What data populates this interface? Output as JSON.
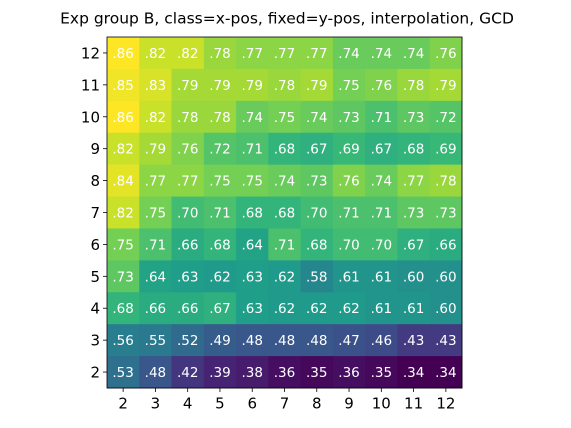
{
  "chart_data": {
    "type": "heatmap",
    "title": "Exp group B, class=x-pos, fixed=y-pos, interpolation, GCD",
    "colormap": "viridis",
    "x": [
      2,
      3,
      4,
      5,
      6,
      7,
      8,
      9,
      10,
      11,
      12
    ],
    "y": [
      12,
      11,
      10,
      9,
      8,
      7,
      6,
      5,
      4,
      3,
      2
    ],
    "values": [
      [
        0.86,
        0.82,
        0.82,
        0.78,
        0.77,
        0.77,
        0.77,
        0.74,
        0.74,
        0.74,
        0.76
      ],
      [
        0.85,
        0.83,
        0.79,
        0.79,
        0.79,
        0.78,
        0.79,
        0.75,
        0.76,
        0.78,
        0.79
      ],
      [
        0.86,
        0.82,
        0.78,
        0.78,
        0.74,
        0.75,
        0.74,
        0.73,
        0.71,
        0.73,
        0.72
      ],
      [
        0.82,
        0.79,
        0.76,
        0.72,
        0.71,
        0.68,
        0.67,
        0.69,
        0.67,
        0.68,
        0.69
      ],
      [
        0.84,
        0.77,
        0.77,
        0.75,
        0.75,
        0.74,
        0.73,
        0.76,
        0.74,
        0.77,
        0.78
      ],
      [
        0.82,
        0.75,
        0.7,
        0.71,
        0.68,
        0.68,
        0.7,
        0.71,
        0.71,
        0.73,
        0.73
      ],
      [
        0.75,
        0.71,
        0.66,
        0.68,
        0.64,
        0.71,
        0.68,
        0.7,
        0.7,
        0.67,
        0.66
      ],
      [
        0.73,
        0.64,
        0.63,
        0.62,
        0.63,
        0.62,
        0.58,
        0.61,
        0.61,
        0.6,
        0.6
      ],
      [
        0.68,
        0.66,
        0.66,
        0.67,
        0.63,
        0.62,
        0.62,
        0.62,
        0.61,
        0.61,
        0.6
      ],
      [
        0.56,
        0.55,
        0.52,
        0.49,
        0.48,
        0.48,
        0.48,
        0.47,
        0.46,
        0.43,
        0.43
      ],
      [
        0.53,
        0.48,
        0.42,
        0.39,
        0.38,
        0.36,
        0.35,
        0.36,
        0.35,
        0.34,
        0.34
      ]
    ],
    "value_labels": [
      [
        ".86",
        ".82",
        ".82",
        ".78",
        ".77",
        ".77",
        ".77",
        ".74",
        ".74",
        ".74",
        ".76"
      ],
      [
        ".85",
        ".83",
        ".79",
        ".79",
        ".79",
        ".78",
        ".79",
        ".75",
        ".76",
        ".78",
        ".79"
      ],
      [
        ".86",
        ".82",
        ".78",
        ".78",
        ".74",
        ".75",
        ".74",
        ".73",
        ".71",
        ".73",
        ".72"
      ],
      [
        ".82",
        ".79",
        ".76",
        ".72",
        ".71",
        ".68",
        ".67",
        ".69",
        ".67",
        ".68",
        ".69"
      ],
      [
        ".84",
        ".77",
        ".77",
        ".75",
        ".75",
        ".74",
        ".73",
        ".76",
        ".74",
        ".77",
        ".78"
      ],
      [
        ".82",
        ".75",
        ".70",
        ".71",
        ".68",
        ".68",
        ".70",
        ".71",
        ".71",
        ".73",
        ".73"
      ],
      [
        ".75",
        ".71",
        ".66",
        ".68",
        ".64",
        ".71",
        ".68",
        ".70",
        ".70",
        ".67",
        ".66"
      ],
      [
        ".73",
        ".64",
        ".63",
        ".62",
        ".63",
        ".62",
        ".58",
        ".61",
        ".61",
        ".60",
        ".60"
      ],
      [
        ".68",
        ".66",
        ".66",
        ".67",
        ".63",
        ".62",
        ".62",
        ".62",
        ".61",
        ".61",
        ".60"
      ],
      [
        ".56",
        ".55",
        ".52",
        ".49",
        ".48",
        ".48",
        ".48",
        ".47",
        ".46",
        ".43",
        ".43"
      ],
      [
        ".53",
        ".48",
        ".42",
        ".39",
        ".38",
        ".36",
        ".35",
        ".36",
        ".35",
        ".34",
        ".34"
      ]
    ]
  }
}
